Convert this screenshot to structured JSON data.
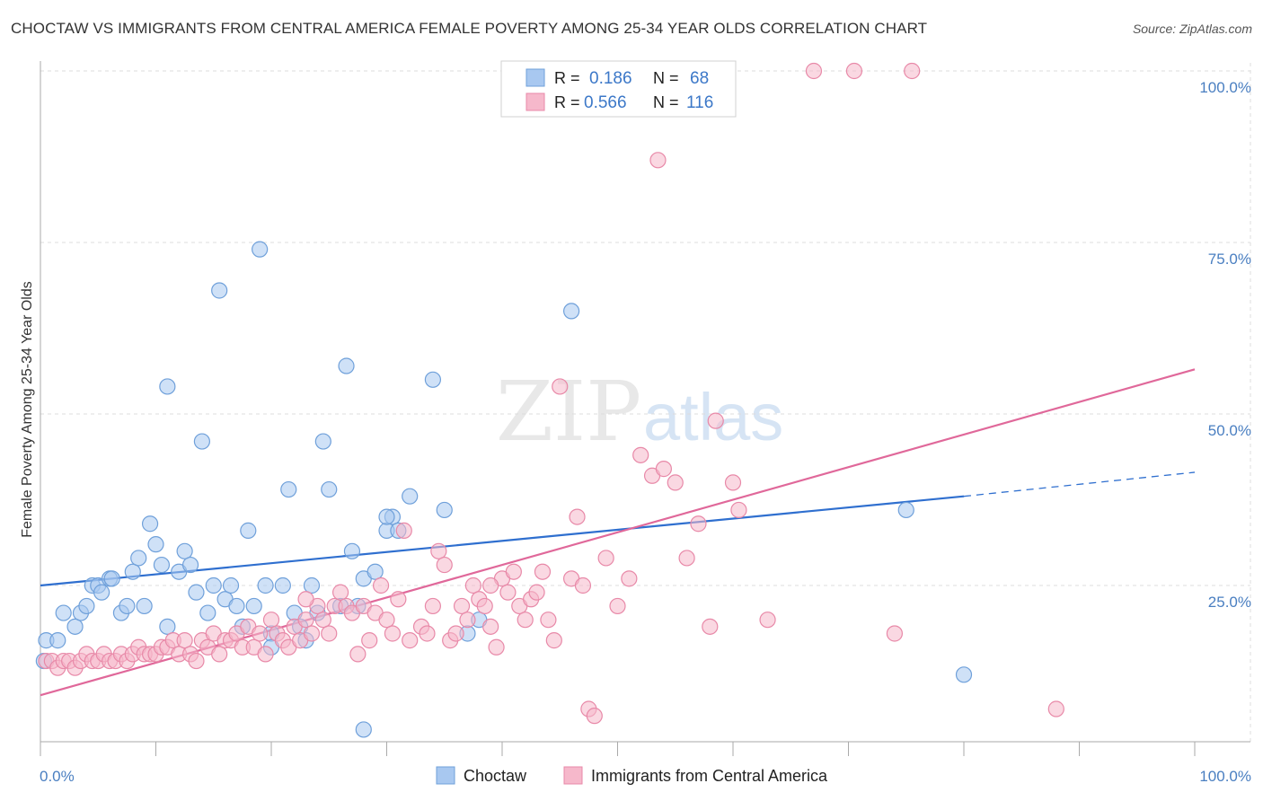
{
  "title": "CHOCTAW VS IMMIGRANTS FROM CENTRAL AMERICA FEMALE POVERTY AMONG 25-34 YEAR OLDS CORRELATION CHART",
  "source": "Source: ZipAtlas.com",
  "watermark": {
    "zip": "ZIP",
    "atlas": "atlas"
  },
  "colors": {
    "blue_fill": "#a8c8f0",
    "blue_stroke": "#6fa0da",
    "blue_line": "#2f6fcf",
    "pink_fill": "#f6b8cb",
    "pink_stroke": "#e889a8",
    "pink_line": "#e0689a",
    "grid": "#dddddd",
    "tick_text": "#4a7fc1"
  },
  "legend": {
    "r_label": "R =",
    "n_label": "N =",
    "entries": [
      {
        "r": "0.186",
        "n": "68"
      },
      {
        "r": "0.566",
        "n": "116"
      }
    ]
  },
  "bottom_legend": [
    "Choctaw",
    "Immigrants from Central America"
  ],
  "chart_data": {
    "type": "scatter",
    "ylabel": "Female Poverty Among 25-34 Year Olds",
    "x_tick_labels": [
      "0.0%",
      "100.0%"
    ],
    "y_tick_labels": [
      "100.0%",
      "75.0%",
      "50.0%",
      "25.0%"
    ],
    "y_ticks": [
      100,
      75,
      50,
      25
    ],
    "xlim": [
      0,
      100
    ],
    "ylim": [
      0,
      100
    ],
    "grid": true,
    "legend_position": "top-center",
    "series": [
      {
        "name": "Choctaw",
        "trend": {
          "x0": 0,
          "y0": 25.0,
          "x1": 80,
          "y1": 38.0,
          "dash_to_x": 100,
          "dash_to_y": 41.5
        },
        "points": [
          [
            0.5,
            17
          ],
          [
            1.5,
            17
          ],
          [
            2,
            21
          ],
          [
            3,
            19
          ],
          [
            3.5,
            21
          ],
          [
            4,
            22
          ],
          [
            4.5,
            25
          ],
          [
            5,
            25
          ],
          [
            5.3,
            24
          ],
          [
            6,
            26
          ],
          [
            6.2,
            26
          ],
          [
            7,
            21
          ],
          [
            7.5,
            22
          ],
          [
            8,
            27
          ],
          [
            8.5,
            29
          ],
          [
            9,
            22
          ],
          [
            9.5,
            34
          ],
          [
            10,
            31
          ],
          [
            10.5,
            28
          ],
          [
            11,
            54
          ],
          [
            11,
            19
          ],
          [
            12,
            27
          ],
          [
            12.5,
            30
          ],
          [
            13,
            28
          ],
          [
            13.5,
            24
          ],
          [
            14,
            46
          ],
          [
            14.5,
            21
          ],
          [
            15,
            25
          ],
          [
            15.5,
            68
          ],
          [
            16,
            23
          ],
          [
            16.5,
            25
          ],
          [
            17,
            22
          ],
          [
            17.5,
            19
          ],
          [
            18,
            33
          ],
          [
            18.5,
            22
          ],
          [
            19,
            74
          ],
          [
            19.5,
            25
          ],
          [
            20,
            18
          ],
          [
            20,
            16
          ],
          [
            21,
            25
          ],
          [
            21.5,
            39
          ],
          [
            22,
            21
          ],
          [
            23,
            17
          ],
          [
            23.5,
            25
          ],
          [
            24,
            21
          ],
          [
            24.5,
            46
          ],
          [
            25,
            39
          ],
          [
            26,
            22
          ],
          [
            26.5,
            57
          ],
          [
            27,
            30
          ],
          [
            27.5,
            22
          ],
          [
            28,
            26
          ],
          [
            29,
            27
          ],
          [
            30,
            33
          ],
          [
            30.5,
            35
          ],
          [
            31,
            33
          ],
          [
            32,
            38
          ],
          [
            34,
            55
          ],
          [
            35,
            36
          ],
          [
            37,
            18
          ],
          [
            38,
            20
          ],
          [
            46,
            65
          ],
          [
            75,
            36
          ],
          [
            80,
            12
          ],
          [
            28,
            4
          ],
          [
            22.5,
            19
          ],
          [
            30,
            35
          ],
          [
            0.3,
            14
          ]
        ]
      },
      {
        "name": "Immigrants from Central America",
        "trend": {
          "x0": 0,
          "y0": 9.0,
          "x1": 100,
          "y1": 56.5
        },
        "points": [
          [
            0.5,
            14
          ],
          [
            1,
            14
          ],
          [
            1.5,
            13
          ],
          [
            2,
            14
          ],
          [
            2.5,
            14
          ],
          [
            3,
            13
          ],
          [
            3.5,
            14
          ],
          [
            4,
            15
          ],
          [
            4.5,
            14
          ],
          [
            5,
            14
          ],
          [
            5.5,
            15
          ],
          [
            6,
            14
          ],
          [
            6.5,
            14
          ],
          [
            7,
            15
          ],
          [
            7.5,
            14
          ],
          [
            8,
            15
          ],
          [
            8.5,
            16
          ],
          [
            9,
            15
          ],
          [
            9.5,
            15
          ],
          [
            10,
            15
          ],
          [
            10.5,
            16
          ],
          [
            11,
            16
          ],
          [
            11.5,
            17
          ],
          [
            12,
            15
          ],
          [
            12.5,
            17
          ],
          [
            13,
            15
          ],
          [
            13.5,
            14
          ],
          [
            14,
            17
          ],
          [
            14.5,
            16
          ],
          [
            15,
            18
          ],
          [
            15.5,
            15
          ],
          [
            16,
            17
          ],
          [
            16.5,
            17
          ],
          [
            17,
            18
          ],
          [
            17.5,
            16
          ],
          [
            18,
            19
          ],
          [
            18.5,
            16
          ],
          [
            19,
            18
          ],
          [
            19.5,
            15
          ],
          [
            20,
            20
          ],
          [
            20.5,
            18
          ],
          [
            21,
            17
          ],
          [
            21.5,
            16
          ],
          [
            22,
            19
          ],
          [
            22.5,
            17
          ],
          [
            23,
            20
          ],
          [
            23.5,
            18
          ],
          [
            24,
            22
          ],
          [
            24.5,
            20
          ],
          [
            25,
            18
          ],
          [
            25.5,
            22
          ],
          [
            26,
            24
          ],
          [
            26.5,
            22
          ],
          [
            27,
            21
          ],
          [
            27.5,
            15
          ],
          [
            28,
            22
          ],
          [
            28.5,
            17
          ],
          [
            29,
            21
          ],
          [
            29.5,
            25
          ],
          [
            30,
            20
          ],
          [
            30.5,
            18
          ],
          [
            31,
            23
          ],
          [
            31.5,
            33
          ],
          [
            32,
            17
          ],
          [
            33,
            19
          ],
          [
            33.5,
            18
          ],
          [
            34,
            22
          ],
          [
            34.5,
            30
          ],
          [
            35,
            28
          ],
          [
            35.5,
            17
          ],
          [
            36,
            18
          ],
          [
            36.5,
            22
          ],
          [
            37,
            20
          ],
          [
            37.5,
            25
          ],
          [
            38,
            23
          ],
          [
            38.5,
            22
          ],
          [
            39,
            19
          ],
          [
            39.5,
            16
          ],
          [
            40,
            26
          ],
          [
            40.5,
            24
          ],
          [
            41,
            27
          ],
          [
            41.5,
            22
          ],
          [
            42,
            20
          ],
          [
            42.5,
            23
          ],
          [
            43,
            24
          ],
          [
            43.5,
            27
          ],
          [
            44,
            20
          ],
          [
            44.5,
            17
          ],
          [
            45,
            54
          ],
          [
            46,
            26
          ],
          [
            46.5,
            35
          ],
          [
            47,
            25
          ],
          [
            47.5,
            7
          ],
          [
            48,
            6
          ],
          [
            49,
            29
          ],
          [
            50,
            22
          ],
          [
            51,
            26
          ],
          [
            52,
            44
          ],
          [
            53,
            41
          ],
          [
            53.5,
            87
          ],
          [
            54,
            42
          ],
          [
            55,
            40
          ],
          [
            56,
            29
          ],
          [
            57,
            34
          ],
          [
            58,
            19
          ],
          [
            58.5,
            49
          ],
          [
            60,
            40
          ],
          [
            60.5,
            36
          ],
          [
            63,
            20
          ],
          [
            67,
            100
          ],
          [
            70.5,
            100
          ],
          [
            75.5,
            100
          ],
          [
            74,
            18
          ],
          [
            88,
            7
          ],
          [
            39,
            25
          ],
          [
            23,
            23
          ]
        ]
      }
    ]
  }
}
